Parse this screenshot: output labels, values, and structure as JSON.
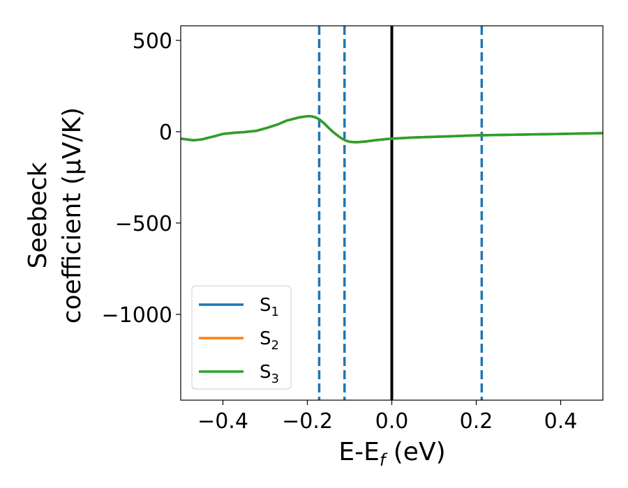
{
  "chart_data": {
    "type": "line",
    "title": "",
    "xlabel": {
      "main": "E-E",
      "sub": "f",
      "tail": " (eV)"
    },
    "ylabel": {
      "line1": "Seebeck",
      "line2": "coefficient  (μV/K)"
    },
    "xlim": [
      -0.5,
      0.5
    ],
    "ylim": [
      -1470,
      580
    ],
    "xticks": [
      {
        "value": -0.4,
        "label": "−0.4"
      },
      {
        "value": -0.2,
        "label": "−0.2"
      },
      {
        "value": 0.0,
        "label": "0.0"
      },
      {
        "value": 0.2,
        "label": "0.2"
      },
      {
        "value": 0.4,
        "label": "0.4"
      }
    ],
    "yticks": [
      {
        "value": 500,
        "label": "500"
      },
      {
        "value": 0,
        "label": "0"
      },
      {
        "value": -500,
        "label": "−500"
      },
      {
        "value": -1000,
        "label": "−1000"
      }
    ],
    "grid": false,
    "legend_position": "lower-left",
    "x": [
      -0.5,
      -0.47,
      -0.45,
      -0.42,
      -0.4,
      -0.37,
      -0.35,
      -0.32,
      -0.3,
      -0.27,
      -0.25,
      -0.22,
      -0.2,
      -0.19,
      -0.18,
      -0.17,
      -0.16,
      -0.15,
      -0.14,
      -0.13,
      -0.12,
      -0.11,
      -0.1,
      -0.09,
      -0.08,
      -0.06,
      -0.04,
      -0.02,
      0.0,
      0.05,
      0.1,
      0.15,
      0.2,
      0.25,
      0.3,
      0.35,
      0.4,
      0.45,
      0.5
    ],
    "series": [
      {
        "name": "S",
        "sub": "1",
        "color": "#1f77b4",
        "values": [
          -38,
          -47,
          -42,
          -25,
          -12,
          -5,
          -2,
          5,
          18,
          40,
          60,
          78,
          85,
          84,
          78,
          65,
          45,
          22,
          0,
          -18,
          -35,
          -48,
          -55,
          -57,
          -57,
          -53,
          -47,
          -42,
          -38,
          -32,
          -28,
          -24,
          -20,
          -18,
          -16,
          -14,
          -12,
          -10,
          -8
        ]
      },
      {
        "name": "S",
        "sub": "2",
        "color": "#ff7f0e",
        "values": [
          -38,
          -47,
          -42,
          -25,
          -12,
          -5,
          -2,
          5,
          18,
          40,
          60,
          78,
          85,
          84,
          78,
          65,
          45,
          22,
          0,
          -18,
          -35,
          -48,
          -55,
          -57,
          -57,
          -53,
          -47,
          -42,
          -38,
          -32,
          -28,
          -24,
          -20,
          -18,
          -16,
          -14,
          -12,
          -10,
          -8
        ]
      },
      {
        "name": "S",
        "sub": "3",
        "color": "#2ca02c",
        "values": [
          -38,
          -47,
          -42,
          -25,
          -12,
          -5,
          -2,
          5,
          18,
          40,
          60,
          78,
          85,
          84,
          78,
          65,
          45,
          22,
          0,
          -18,
          -35,
          -48,
          -55,
          -57,
          -57,
          -53,
          -47,
          -42,
          -38,
          -32,
          -28,
          -24,
          -20,
          -18,
          -16,
          -14,
          -12,
          -10,
          -8
        ]
      }
    ],
    "vertical_lines": [
      {
        "x": -0.172,
        "style": "dashed",
        "color": "#1f77b4"
      },
      {
        "x": -0.112,
        "style": "dashed",
        "color": "#1f77b4"
      },
      {
        "x": 0.0,
        "style": "solid",
        "color": "#000000"
      },
      {
        "x": 0.213,
        "style": "dashed",
        "color": "#1f77b4"
      }
    ]
  }
}
